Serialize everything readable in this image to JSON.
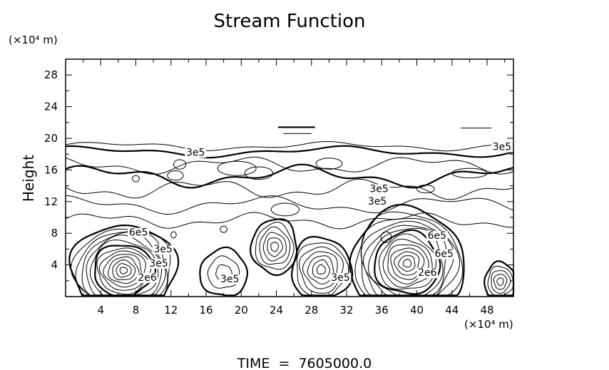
{
  "chart_data": {
    "type": "contour",
    "title": "Stream Function",
    "ylabel": "Height",
    "y_unit": "(×10⁴ m)",
    "x_unit": "(×10⁴ m)",
    "footer": "TIME  =  7605000.0",
    "xlim": [
      0,
      51
    ],
    "ylim": [
      0,
      30
    ],
    "x_ticks": [
      4,
      8,
      12,
      16,
      20,
      24,
      28,
      32,
      36,
      40,
      44,
      48
    ],
    "y_ticks": [
      4,
      8,
      12,
      16,
      20,
      24,
      28
    ],
    "contour_labels": [
      {
        "text": "3e5",
        "x": 14.8,
        "y": 17.8
      },
      {
        "text": "3e5",
        "x": 49.7,
        "y": 18.5
      },
      {
        "text": "3e5",
        "x": 35.7,
        "y": 13.2
      },
      {
        "text": "3e5",
        "x": 35.5,
        "y": 11.6
      },
      {
        "text": "6e5",
        "x": 8.3,
        "y": 7.7
      },
      {
        "text": "3e5",
        "x": 11.1,
        "y": 5.6
      },
      {
        "text": "3e5",
        "x": 10.6,
        "y": 3.8
      },
      {
        "text": "2e6",
        "x": 9.3,
        "y": 2.0
      },
      {
        "text": "3e5",
        "x": 18.7,
        "y": 1.8
      },
      {
        "text": "3e5",
        "x": 31.3,
        "y": 2.0
      },
      {
        "text": "6e5",
        "x": 42.3,
        "y": 7.3
      },
      {
        "text": "6e5",
        "x": 43.1,
        "y": 5.0
      },
      {
        "text": "2e6",
        "x": 41.2,
        "y": 2.6
      }
    ],
    "vortices": [
      {
        "cx": 6.6,
        "cy": 3.3,
        "rx": 6.0,
        "ry": 5.8,
        "levels": 14
      },
      {
        "cx": 38.9,
        "cy": 4.2,
        "rx": 6.5,
        "ry": 6.9,
        "levels": 14
      },
      {
        "cx": 23.8,
        "cy": 6.3,
        "rx": 2.6,
        "ry": 3.5,
        "levels": 6
      },
      {
        "cx": 29.1,
        "cy": 3.4,
        "rx": 3.4,
        "ry": 4.1,
        "levels": 7
      },
      {
        "cx": 49.5,
        "cy": 1.9,
        "rx": 1.8,
        "ry": 2.4,
        "levels": 5
      },
      {
        "cx": 18.0,
        "cy": 3.0,
        "rx": 2.7,
        "ry": 3.0,
        "levels": 3
      }
    ]
  }
}
